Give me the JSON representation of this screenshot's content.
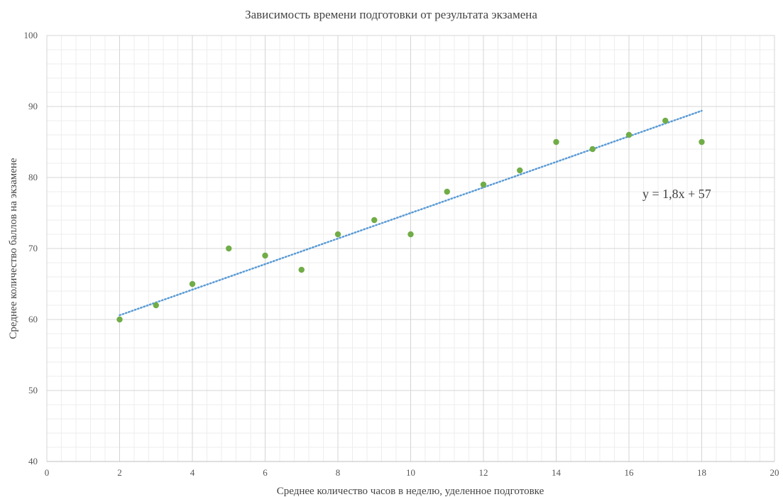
{
  "chart_data": {
    "type": "scatter",
    "title": "Зависимость времени подготовки от результата экзамена",
    "xlabel": "Среднее количество часов в неделю, уделенное подготовке",
    "ylabel": "Среднее количество баллов на экзамене",
    "xlim": [
      0,
      20
    ],
    "ylim": [
      40,
      100
    ],
    "x_ticks": [
      0,
      2,
      4,
      6,
      8,
      10,
      12,
      14,
      16,
      18,
      20
    ],
    "y_ticks": [
      40,
      50,
      60,
      70,
      80,
      90,
      100
    ],
    "grid": true,
    "series": [
      {
        "color": "#70AD47",
        "points": [
          {
            "x": 2,
            "y": 60
          },
          {
            "x": 3,
            "y": 62
          },
          {
            "x": 4,
            "y": 65
          },
          {
            "x": 5,
            "y": 70
          },
          {
            "x": 6,
            "y": 69
          },
          {
            "x": 7,
            "y": 67
          },
          {
            "x": 8,
            "y": 72
          },
          {
            "x": 9,
            "y": 74
          },
          {
            "x": 10,
            "y": 72
          },
          {
            "x": 11,
            "y": 78
          },
          {
            "x": 12,
            "y": 79
          },
          {
            "x": 13,
            "y": 81
          },
          {
            "x": 14,
            "y": 85
          },
          {
            "x": 15,
            "y": 84
          },
          {
            "x": 16,
            "y": 86
          },
          {
            "x": 17,
            "y": 88
          },
          {
            "x": 18,
            "y": 85
          }
        ]
      }
    ],
    "trendline": {
      "style": "dotted",
      "color": "#5B9BD5",
      "slope": 1.8,
      "intercept": 57,
      "x_range": [
        2,
        18
      ],
      "equation_label": "y = 1,8x + 57"
    }
  }
}
